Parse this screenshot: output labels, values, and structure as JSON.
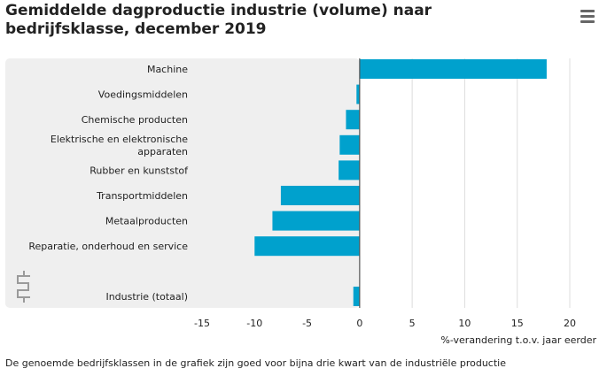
{
  "chart_data": {
    "type": "bar",
    "orientation": "horizontal",
    "title": "Gemiddelde dagproductie industrie (volume) naar bedrijfsklasse, december 2019",
    "xlabel": "%-verandering t.o.v. jaar eerder",
    "ylabel": "",
    "xlim": [
      -15,
      20
    ],
    "xticks": [
      "-15",
      "-10",
      "-5",
      "0",
      "5",
      "10",
      "15",
      "20"
    ],
    "grid": true,
    "bar_color": "#00a1cd",
    "categories": [
      [
        "Machine"
      ],
      [
        "Voedingsmiddelen"
      ],
      [
        "Chemische producten"
      ],
      [
        "Elektrische en elektronische",
        "apparaten"
      ],
      [
        "Rubber en kunststof"
      ],
      [
        "Transportmiddelen"
      ],
      [
        "Metaalproducten"
      ],
      [
        "Reparatie, onderhoud en service"
      ],
      [
        "Industrie (totaal)"
      ]
    ],
    "values": [
      17.8,
      -0.3,
      -1.3,
      -1.9,
      -2.0,
      -7.5,
      -8.3,
      -10.0,
      -0.6
    ]
  },
  "footnote": "De genoemde bedrijfsklassen in de grafiek zijn goed voor bijna drie kwart van de industriële productie",
  "logo": "cbs",
  "menu_icon": "hamburger-menu-icon"
}
